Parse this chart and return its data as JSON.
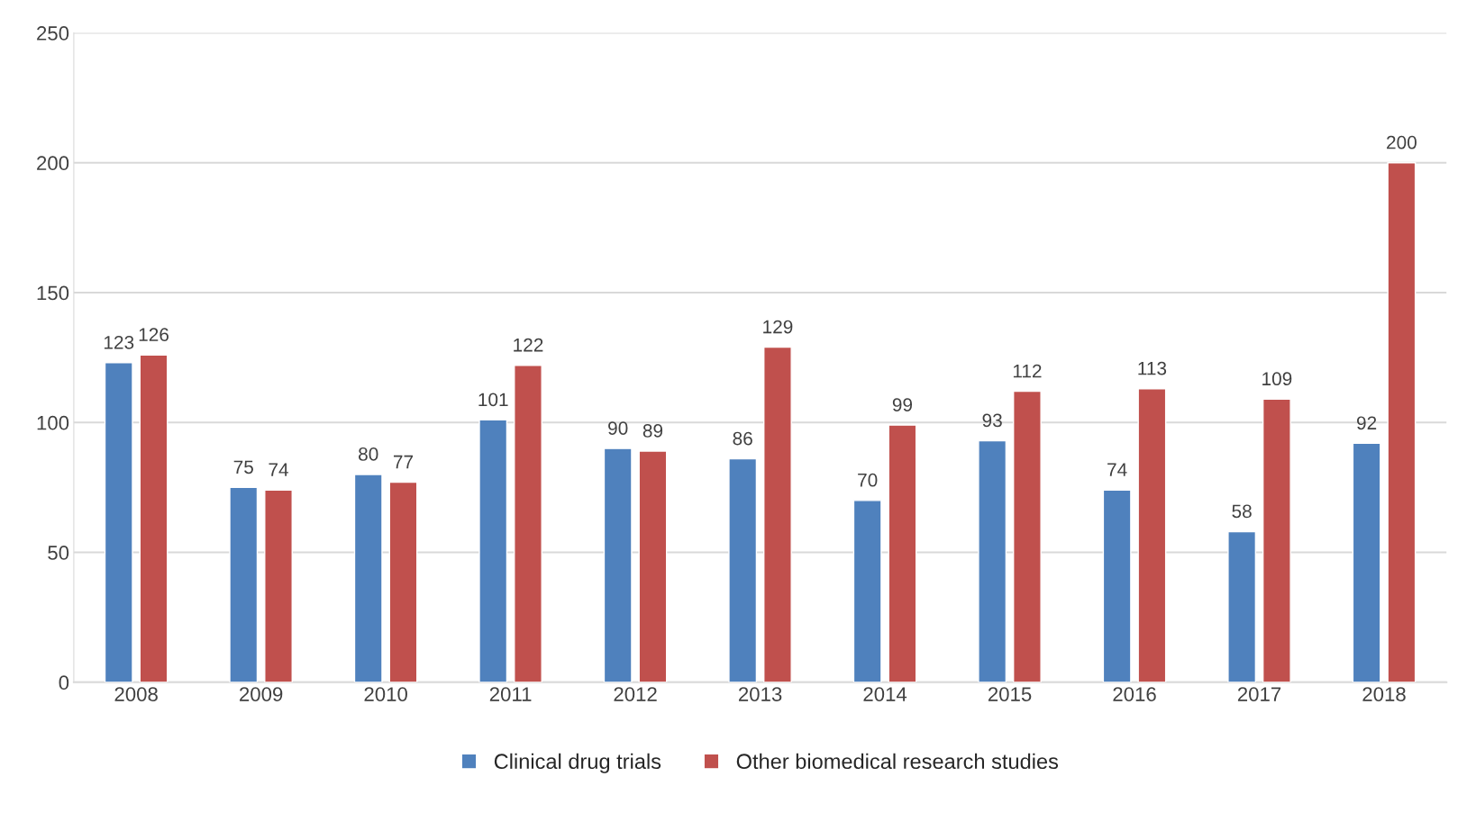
{
  "chart_data": {
    "type": "bar",
    "categories": [
      "2008",
      "2009",
      "2010",
      "2011",
      "2012",
      "2013",
      "2014",
      "2015",
      "2016",
      "2017",
      "2018"
    ],
    "series": [
      {
        "name": "Clinical drug trials",
        "color": "#4f81bd",
        "values": [
          123,
          75,
          80,
          101,
          90,
          86,
          70,
          93,
          74,
          58,
          92
        ]
      },
      {
        "name": "Other biomedical research studies",
        "color": "#c0504d",
        "values": [
          126,
          74,
          77,
          122,
          89,
          129,
          99,
          112,
          113,
          109,
          200
        ]
      }
    ],
    "ylim": [
      0,
      250
    ],
    "yticks": [
      0,
      50,
      100,
      150,
      200,
      250
    ],
    "grid": "y",
    "legend": "bottom",
    "data_labels": true
  }
}
